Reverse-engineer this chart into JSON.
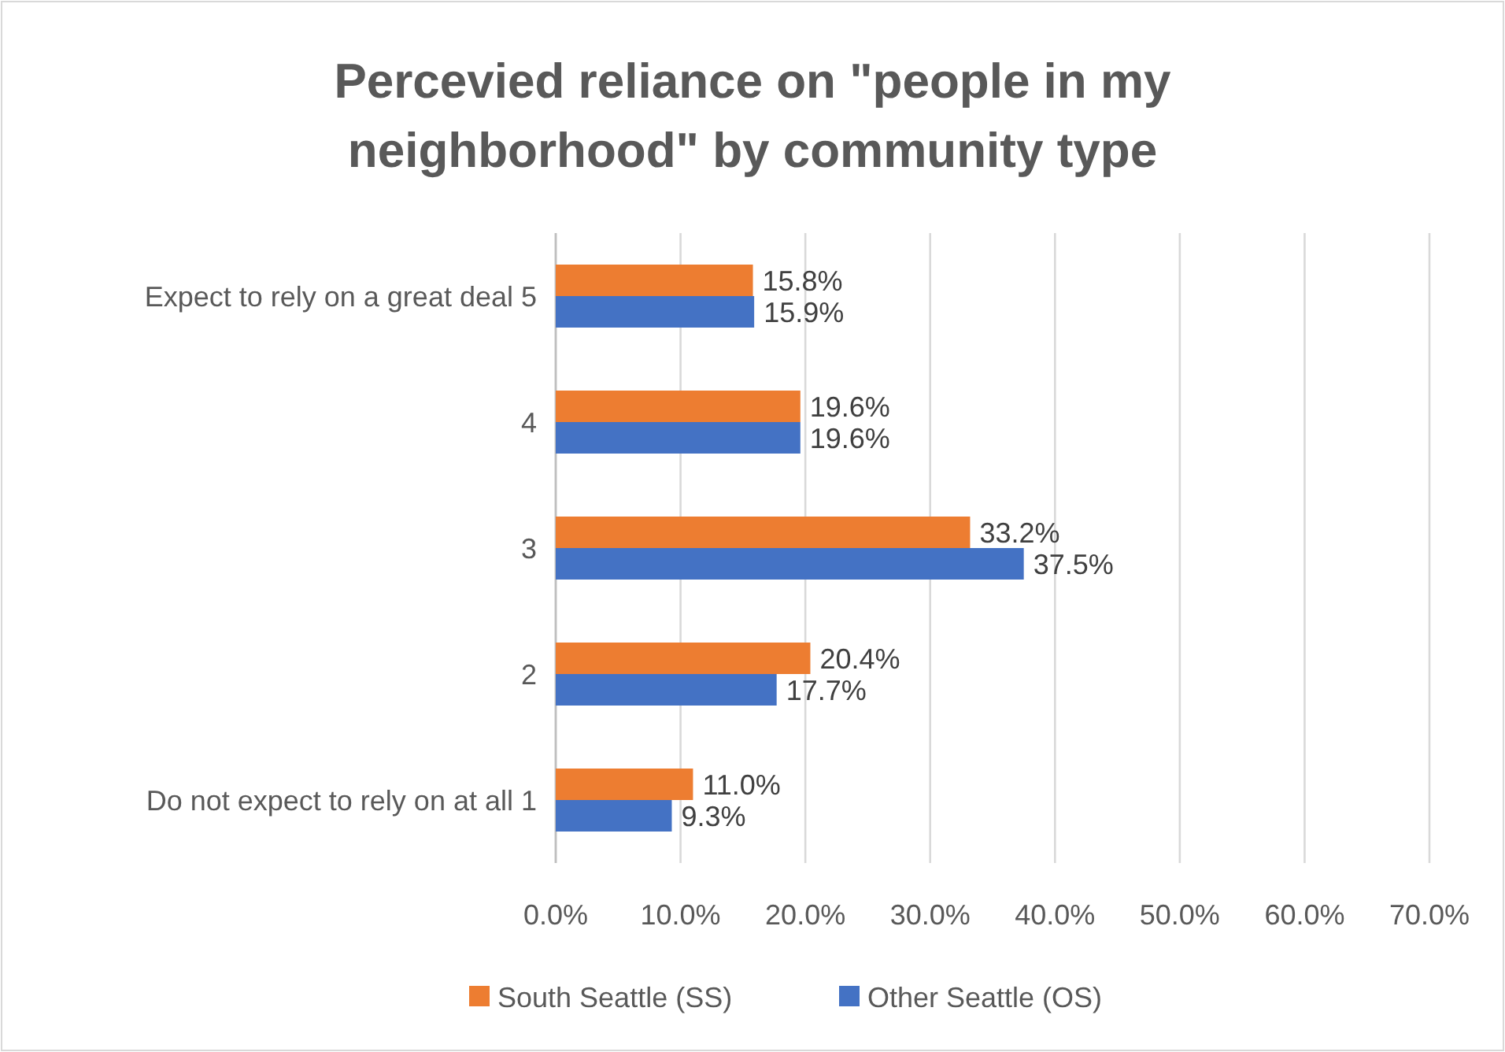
{
  "chart_data": {
    "type": "bar",
    "orientation": "horizontal",
    "title": "Percevied reliance on \"people in my neighborhood\" by community type",
    "categories": [
      "Expect to rely on a great deal 5",
      "4",
      "3",
      "2",
      "Do not expect to rely on at all 1"
    ],
    "series": [
      {
        "name": "South Seattle (SS)",
        "color": "#ed7d31",
        "values": [
          15.8,
          19.6,
          33.2,
          20.4,
          11.0
        ],
        "value_labels": [
          "15.8%",
          "19.6%",
          "33.2%",
          "20.4%",
          "11.0%"
        ]
      },
      {
        "name": "Other Seattle (OS)",
        "color": "#4472c4",
        "values": [
          15.9,
          19.6,
          37.5,
          17.7,
          9.3
        ],
        "value_labels": [
          "15.9%",
          "19.6%",
          "37.5%",
          "17.7%",
          "9.3%"
        ]
      }
    ],
    "xlim": [
      0,
      70
    ],
    "xticks": [
      {
        "value": 0,
        "label": "0.0%"
      },
      {
        "value": 10,
        "label": "10.0%"
      },
      {
        "value": 20,
        "label": "20.0%"
      },
      {
        "value": 30,
        "label": "30.0%"
      },
      {
        "value": 40,
        "label": "40.0%"
      },
      {
        "value": 50,
        "label": "50.0%"
      },
      {
        "value": 60,
        "label": "60.0%"
      },
      {
        "value": 70,
        "label": "70.0%"
      }
    ],
    "grid": "x",
    "legend": "bottom"
  }
}
